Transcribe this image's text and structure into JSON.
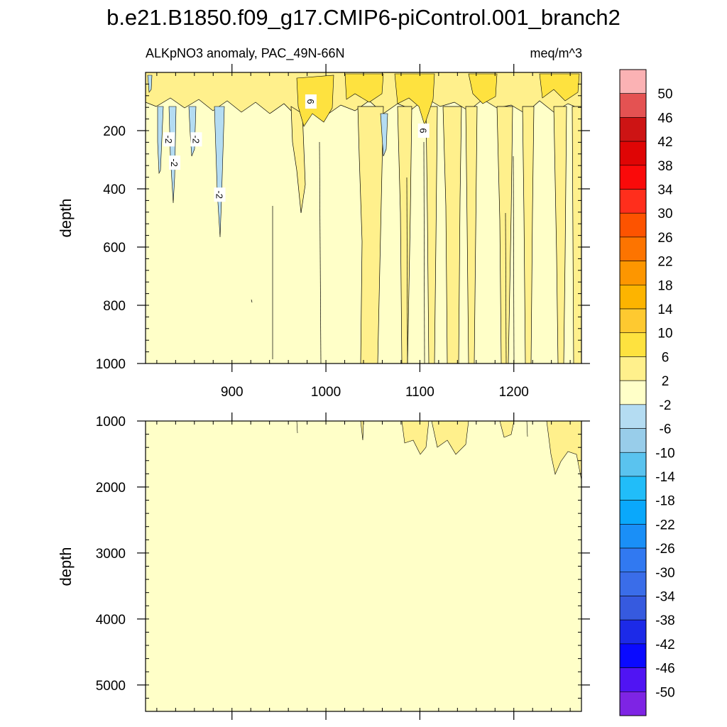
{
  "chart_data": {
    "type": "heatmap",
    "title": "b.e21.B1850.f09_g17.CMIP6-piControl.001_branch2",
    "subtitle_left": "ALKpNO3 anomaly, PAC_49N-66N",
    "subtitle_right": "meq/m^3",
    "xlabel": "",
    "ylabel": "depth",
    "xlim": [
      808,
      1272
    ],
    "x_ticks": [
      900,
      1000,
      1100,
      1200
    ],
    "x_tick_labels": [
      "900",
      "1000",
      "1100",
      "1200"
    ],
    "panels": [
      {
        "name": "upper",
        "ylim": [
          0,
          1000
        ],
        "y_ticks": [
          200,
          400,
          600,
          800,
          1000
        ],
        "y_tick_labels": [
          "200",
          "400",
          "600",
          "800",
          "1000"
        ],
        "contour_labels": [
          {
            "text": "6",
            "x": 984,
            "y": 100
          },
          {
            "text": "6",
            "x": 1104,
            "y": 200
          },
          {
            "text": "-2",
            "x": 833,
            "y": 230
          },
          {
            "text": "-2",
            "x": 862,
            "y": 230
          },
          {
            "text": "-2",
            "x": 839,
            "y": 310
          },
          {
            "text": "-2",
            "x": 887,
            "y": 420
          }
        ]
      },
      {
        "name": "lower",
        "ylim": [
          1000,
          5400
        ],
        "y_ticks": [
          1000,
          2000,
          3000,
          4000,
          5000
        ],
        "y_tick_labels": [
          "1000",
          "2000",
          "3000",
          "4000",
          "5000"
        ],
        "contour_labels": []
      }
    ],
    "colorbar": {
      "levels": [
        "50",
        "46",
        "42",
        "38",
        "34",
        "30",
        "26",
        "22",
        "18",
        "14",
        "10",
        "6",
        "2",
        "-2",
        "-6",
        "-10",
        "-14",
        "-18",
        "-22",
        "-26",
        "-30",
        "-34",
        "-38",
        "-42",
        "-46",
        "-50"
      ],
      "colors": [
        "#fbb2b4",
        "#e45252",
        "#cd1414",
        "#df0505",
        "#fa0a0a",
        "#ff2e1c",
        "#fd5300",
        "#fd7400",
        "#fd9600",
        "#fdb400",
        "#fec930",
        "#fee23f",
        "#fff08c",
        "#ffffc8",
        "#b4dcf2",
        "#98cdea",
        "#5ac3ef",
        "#21bdf9",
        "#0aa8fb",
        "#1a8ff7",
        "#3179f1",
        "#3a6de9",
        "#365adf",
        "#1c2ae8",
        "#0a0aff",
        "#5014f3",
        "#7e24e4"
      ]
    },
    "colors": {
      "background_field": "#ffffc8",
      "positive_2_6": "#fff08c",
      "positive_6_10": "#fee23f",
      "negative_2_6": "#b4dcf2"
    }
  }
}
